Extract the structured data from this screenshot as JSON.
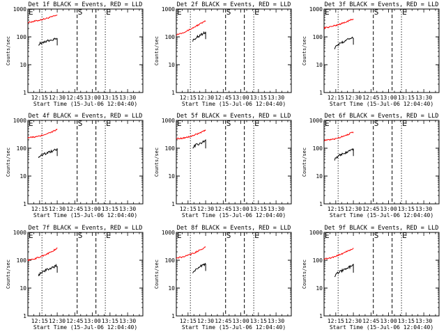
{
  "page_title": "",
  "colors": {
    "events": "#000000",
    "lld": "#ff0000",
    "background": "#ffffff"
  },
  "chart_data": [
    {
      "type": "line",
      "title": "Det 1f BLACK = Events, RED = LLD",
      "xlabel": "Start Time (15-Jul-06 12:04:40)",
      "ylabel": "Counts/sec",
      "y_scale": "log",
      "ylim": [
        1,
        1000
      ],
      "xlim": [
        "12:05",
        "13:43"
      ],
      "x_ticks": [
        "12:15",
        "12:30",
        "12:45",
        "13:00",
        "13:15",
        "13:30"
      ],
      "y_ticks": [
        "1",
        "10",
        "100",
        "1000"
      ],
      "markers": {
        "E_left": "12:05",
        "dotted": "12:17",
        "S": "12:47",
        "dashed": "13:03",
        "dotted2": "13:11",
        "E_right": "13:11"
      },
      "series": [
        {
          "values": {
            "x": [
              "12:05",
              "12:10",
              "12:15",
              "12:20",
              "12:25",
              "12:30"
            ],
            "y": [
              330,
              360,
              400,
              450,
              520,
              600
            ]
          }
        },
        {
          "values": {
            "x": [
              "12:14",
              "12:18",
              "12:22",
              "12:26",
              "12:30"
            ],
            "y": [
              55,
              65,
              72,
              80,
              90
            ]
          }
        }
      ]
    },
    {
      "type": "line",
      "title": "Det 2f BLACK = Events, RED = LLD",
      "xlabel": "Start Time (15-Jul-06 12:04:40)",
      "ylabel": "Counts/sec",
      "y_scale": "log",
      "ylim": [
        1,
        1000
      ],
      "xlim": [
        "12:05",
        "13:43"
      ],
      "x_ticks": [
        "12:15",
        "12:30",
        "12:45",
        "13:00",
        "13:15",
        "13:30"
      ],
      "y_ticks": [
        "1",
        "10",
        "100",
        "1000"
      ],
      "markers": {
        "E_left": "12:05",
        "dotted": "12:17",
        "S": "12:47",
        "dashed": "13:03",
        "dotted2": "13:11",
        "E_right": "13:11"
      },
      "series": [
        {
          "values": {
            "x": [
              "12:05",
              "12:10",
              "12:15",
              "12:20",
              "12:25",
              "12:30"
            ],
            "y": [
              120,
              140,
              170,
              220,
              290,
              370
            ]
          }
        },
        {
          "values": {
            "x": [
              "12:19",
              "12:22",
              "12:25",
              "12:28",
              "12:30"
            ],
            "y": [
              75,
              95,
              110,
              135,
              150
            ]
          }
        }
      ]
    },
    {
      "type": "line",
      "title": "Det 3f BLACK = Events, RED = LLD",
      "xlabel": "Start Time (15-Jul-06 12:04:40)",
      "ylabel": "Counts/sec",
      "y_scale": "log",
      "ylim": [
        1,
        1000
      ],
      "xlim": [
        "12:05",
        "13:43"
      ],
      "x_ticks": [
        "12:15",
        "12:30",
        "12:45",
        "13:00",
        "13:15",
        "13:30"
      ],
      "y_ticks": [
        "1",
        "10",
        "100",
        "1000"
      ],
      "markers": {
        "E_left": "12:05",
        "dotted": "12:17",
        "S": "12:47",
        "dashed": "13:03",
        "dotted2": "13:11",
        "E_right": "13:11"
      },
      "series": [
        {
          "values": {
            "x": [
              "12:05",
              "12:10",
              "12:15",
              "12:20",
              "12:25",
              "12:30"
            ],
            "y": [
              210,
              230,
              260,
              300,
              360,
              440
            ]
          }
        },
        {
          "values": {
            "x": [
              "12:14",
              "12:18",
              "12:22",
              "12:26",
              "12:30"
            ],
            "y": [
              40,
              55,
              70,
              85,
              95
            ]
          }
        }
      ]
    },
    {
      "type": "line",
      "title": "Det 4f BLACK = Events, RED = LLD",
      "xlabel": "Start Time (15-Jul-06 12:04:40)",
      "ylabel": "Counts/sec",
      "y_scale": "log",
      "ylim": [
        1,
        1000
      ],
      "xlim": [
        "12:05",
        "13:43"
      ],
      "x_ticks": [
        "12:15",
        "12:30",
        "12:45",
        "13:00",
        "13:15",
        "13:30"
      ],
      "y_ticks": [
        "1",
        "10",
        "100",
        "1000"
      ],
      "markers": {
        "E_left": "12:05",
        "dotted": "12:17",
        "S": "12:47",
        "dashed": "13:03",
        "dotted2": "13:11",
        "E_right": "13:11"
      },
      "series": [
        {
          "values": {
            "x": [
              "12:05",
              "12:10",
              "12:15",
              "12:20",
              "12:25",
              "12:30"
            ],
            "y": [
              240,
              250,
              270,
              320,
              380,
              470
            ]
          }
        },
        {
          "values": {
            "x": [
              "12:14",
              "12:18",
              "12:22",
              "12:26",
              "12:30"
            ],
            "y": [
              50,
              60,
              70,
              80,
              95
            ]
          }
        }
      ]
    },
    {
      "type": "line",
      "title": "Det 5f BLACK = Events, RED = LLD",
      "xlabel": "Start Time (15-Jul-06 12:04:40)",
      "ylabel": "Counts/sec",
      "y_scale": "log",
      "ylim": [
        1,
        1000
      ],
      "xlim": [
        "12:05",
        "13:43"
      ],
      "x_ticks": [
        "12:15",
        "12:30",
        "12:45",
        "13:00",
        "13:15",
        "13:30"
      ],
      "y_ticks": [
        "1",
        "10",
        "100",
        "1000"
      ],
      "markers": {
        "E_left": "12:05",
        "dotted": "12:17",
        "S": "12:47",
        "dashed": "13:03",
        "dotted2": "13:11",
        "E_right": "13:11"
      },
      "series": [
        {
          "values": {
            "x": [
              "12:05",
              "12:10",
              "12:15",
              "12:20",
              "12:25",
              "12:30"
            ],
            "y": [
              220,
              230,
              250,
              290,
              350,
              440
            ]
          }
        },
        {
          "values": {
            "x": [
              "12:19",
              "12:22",
              "12:25",
              "12:28",
              "12:30"
            ],
            "y": [
              110,
              130,
              150,
              170,
              180
            ]
          }
        }
      ]
    },
    {
      "type": "line",
      "title": "Det 6f BLACK = Events, RED = LLD",
      "xlabel": "Start Time (15-Jul-06 12:04:40)",
      "ylabel": "Counts/sec",
      "y_scale": "log",
      "ylim": [
        1,
        1000
      ],
      "xlim": [
        "12:05",
        "13:43"
      ],
      "x_ticks": [
        "12:15",
        "12:30",
        "12:45",
        "13:00",
        "13:15",
        "13:30"
      ],
      "y_ticks": [
        "1",
        "10",
        "100",
        "1000"
      ],
      "markers": {
        "E_left": "12:05",
        "dotted": "12:17",
        "S": "12:47",
        "dashed": "13:03",
        "dotted2": "13:11",
        "E_right": "13:11"
      },
      "series": [
        {
          "values": {
            "x": [
              "12:05",
              "12:10",
              "12:15",
              "12:20",
              "12:25",
              "12:30"
            ],
            "y": [
              190,
              200,
              220,
              260,
              310,
              380
            ]
          }
        },
        {
          "values": {
            "x": [
              "12:14",
              "12:18",
              "12:22",
              "12:26",
              "12:30"
            ],
            "y": [
              40,
              55,
              65,
              80,
              95
            ]
          }
        }
      ]
    },
    {
      "type": "line",
      "title": "Det 7f BLACK = Events, RED = LLD",
      "xlabel": "Start Time (15-Jul-06 12:04:40)",
      "ylabel": "Counts/sec",
      "y_scale": "log",
      "ylim": [
        1,
        1000
      ],
      "xlim": [
        "12:05",
        "13:43"
      ],
      "x_ticks": [
        "12:15",
        "12:30",
        "12:45",
        "13:00",
        "13:15",
        "13:30"
      ],
      "y_ticks": [
        "1",
        "10",
        "100",
        "1000"
      ],
      "markers": {
        "E_left": "12:05",
        "dotted": "12:17",
        "S": "12:47",
        "dashed": "13:03",
        "dotted2": "13:11",
        "E_right": "13:11"
      },
      "series": [
        {
          "values": {
            "x": [
              "12:05",
              "12:10",
              "12:15",
              "12:20",
              "12:25",
              "12:30"
            ],
            "y": [
              100,
              110,
              130,
              160,
              200,
              270
            ]
          }
        },
        {
          "values": {
            "x": [
              "12:14",
              "12:18",
              "12:22",
              "12:26",
              "12:30"
            ],
            "y": [
              30,
              40,
              48,
              55,
              65
            ]
          }
        }
      ]
    },
    {
      "type": "line",
      "title": "Det 8f BLACK = Events, RED = LLD",
      "xlabel": "Start Time (15-Jul-06 12:04:40)",
      "ylabel": "Counts/sec",
      "y_scale": "log",
      "ylim": [
        1,
        1000
      ],
      "xlim": [
        "12:05",
        "13:43"
      ],
      "x_ticks": [
        "12:15",
        "12:30",
        "12:45",
        "13:00",
        "13:15",
        "13:30"
      ],
      "y_ticks": [
        "1",
        "10",
        "100",
        "1000"
      ],
      "markers": {
        "E_left": "12:05",
        "dotted": "12:17",
        "S": "12:47",
        "dashed": "13:03",
        "dotted2": "13:11",
        "E_right": "13:11"
      },
      "series": [
        {
          "values": {
            "x": [
              "12:05",
              "12:10",
              "12:15",
              "12:20",
              "12:25",
              "12:30"
            ],
            "y": [
              120,
              130,
              150,
              180,
              230,
              300
            ]
          }
        },
        {
          "values": {
            "x": [
              "12:19",
              "12:22",
              "12:25",
              "12:28",
              "12:30"
            ],
            "y": [
              38,
              48,
              58,
              68,
              75
            ]
          }
        }
      ]
    },
    {
      "type": "line",
      "title": "Det 9f BLACK = Events, RED = LLD",
      "xlabel": "Start Time (15-Jul-06 12:04:40)",
      "ylabel": "Counts/sec",
      "y_scale": "log",
      "ylim": [
        1,
        1000
      ],
      "xlim": [
        "12:05",
        "13:43"
      ],
      "x_ticks": [
        "12:15",
        "12:30",
        "12:45",
        "13:00",
        "13:15",
        "13:30"
      ],
      "y_ticks": [
        "1",
        "10",
        "100",
        "1000"
      ],
      "markers": {
        "E_left": "12:05",
        "dotted": "12:17",
        "S": "12:47",
        "dashed": "13:03",
        "dotted2": "13:11",
        "E_right": "13:11"
      },
      "series": [
        {
          "values": {
            "x": [
              "12:05",
              "12:10",
              "12:15",
              "12:20",
              "12:25",
              "12:30"
            ],
            "y": [
              110,
              120,
              140,
              170,
              210,
              270
            ]
          }
        },
        {
          "values": {
            "x": [
              "12:14",
              "12:18",
              "12:22",
              "12:26",
              "12:30"
            ],
            "y": [
              28,
              38,
              46,
              55,
              65
            ]
          }
        }
      ]
    }
  ]
}
